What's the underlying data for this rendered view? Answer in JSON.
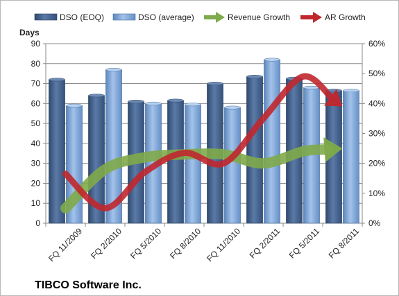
{
  "colors": {
    "dso_eoq": "#4f6d95",
    "dso_avg": "#7fa6d6",
    "revenue_growth": "#7faa4a",
    "ar_growth": "#c0272d"
  },
  "chart_data": {
    "type": "bar",
    "title": "TIBCO Software Inc.",
    "ylabel": "Days",
    "ylim": [
      0,
      90
    ],
    "y_ticks": [
      "0",
      "10",
      "20",
      "30",
      "40",
      "50",
      "60",
      "70",
      "80",
      "90"
    ],
    "y2lim": [
      0,
      0.6
    ],
    "y2_ticks": [
      "0%",
      "10%",
      "20%",
      "30%",
      "40%",
      "50%",
      "60%"
    ],
    "categories": [
      "FQ 11/2009",
      "FQ 2/2010",
      "FQ 5/2010",
      "FQ 8/2010",
      "FQ 11/2010",
      "FQ 2/2011",
      "FQ 5/2011",
      "FQ 8/2011"
    ],
    "grid": true,
    "legend_position": "top",
    "series": [
      {
        "name": "DSO (EOQ)",
        "type": "bar",
        "axis": "left",
        "values": [
          72,
          64,
          61,
          61.5,
          70,
          73.5,
          72.5,
          66.5
        ]
      },
      {
        "name": "DSO (average)",
        "type": "bar",
        "axis": "left",
        "values": [
          59,
          77,
          60,
          59.5,
          58,
          82,
          68,
          66.5
        ]
      },
      {
        "name": "Revenue Growth",
        "type": "line",
        "axis": "right",
        "values": [
          0.05,
          0.18,
          0.22,
          0.23,
          0.23,
          0.2,
          0.24,
          0.25
        ]
      },
      {
        "name": "AR Growth",
        "type": "line",
        "axis": "right",
        "values": [
          0.165,
          0.05,
          0.17,
          0.235,
          0.2,
          0.35,
          0.49,
          0.39
        ]
      }
    ]
  }
}
